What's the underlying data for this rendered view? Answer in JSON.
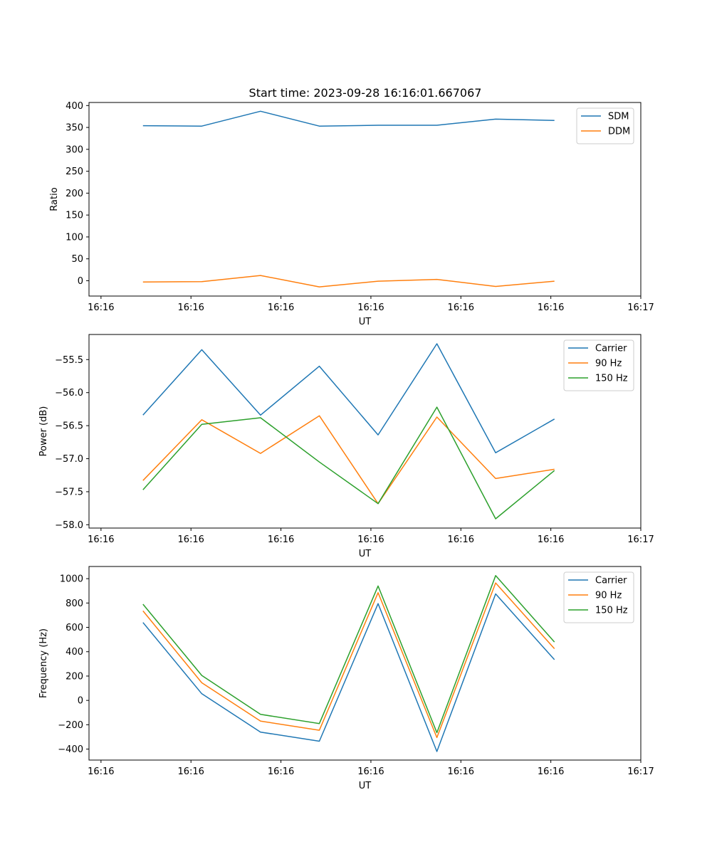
{
  "figure_title": "Start time: 2023-09-28 16:16:01.667067",
  "chart_data": [
    {
      "type": "line",
      "title": "Start time: 2023-09-28 16:16:01.667067",
      "xlabel": "UT",
      "ylabel": "Ratio",
      "xlim": [
        -0.6,
        8.6
      ],
      "ylim": [
        -35,
        407
      ],
      "x_ticks": [
        -0.4,
        1.1,
        2.6,
        4.1,
        5.6,
        7.1,
        8.6
      ],
      "x_tick_labels": [
        "16:16",
        "16:16",
        "16:16",
        "16:16",
        "16:16",
        "16:16",
        "16:17"
      ],
      "y_ticks": [
        0,
        50,
        100,
        150,
        200,
        250,
        300,
        350,
        400
      ],
      "y_tick_labels": [
        "0",
        "50",
        "100",
        "150",
        "200",
        "250",
        "300",
        "350",
        "400"
      ],
      "legend_position": "top-right",
      "x": [
        0.3,
        1.28,
        2.26,
        3.24,
        4.22,
        5.2,
        6.18,
        7.16
      ],
      "series": [
        {
          "name": "SDM",
          "color": "#1f77b4",
          "values": [
            354,
            353,
            387,
            353,
            355,
            355,
            369,
            366
          ]
        },
        {
          "name": "DDM",
          "color": "#ff7f0e",
          "values": [
            -3,
            -2,
            12,
            -14,
            -1,
            3,
            -13,
            -1
          ]
        }
      ]
    },
    {
      "type": "line",
      "title": "",
      "xlabel": "UT",
      "ylabel": "Power (dB)",
      "xlim": [
        -0.6,
        8.6
      ],
      "ylim": [
        -58.05,
        -55.12
      ],
      "x_ticks": [
        -0.4,
        1.1,
        2.6,
        4.1,
        5.6,
        7.1,
        8.6
      ],
      "x_tick_labels": [
        "16:16",
        "16:16",
        "16:16",
        "16:16",
        "16:16",
        "16:16",
        "16:17"
      ],
      "y_ticks": [
        -58.0,
        -57.5,
        -57.0,
        -56.5,
        -56.0,
        -55.5
      ],
      "y_tick_labels": [
        "−58.0",
        "−57.5",
        "−57.0",
        "−56.5",
        "−56.0",
        "−55.5"
      ],
      "legend_position": "top-right",
      "x": [
        0.3,
        1.28,
        2.26,
        3.24,
        4.22,
        5.2,
        6.18,
        7.16
      ],
      "series": [
        {
          "name": "Carrier",
          "color": "#1f77b4",
          "values": [
            -56.34,
            -55.35,
            -56.34,
            -55.6,
            -56.64,
            -55.26,
            -56.91,
            -56.4
          ]
        },
        {
          "name": "90 Hz",
          "color": "#ff7f0e",
          "values": [
            -57.33,
            -56.41,
            -56.92,
            -56.35,
            -57.68,
            -56.37,
            -57.3,
            -57.16
          ]
        },
        {
          "name": "150 Hz",
          "color": "#2ca02c",
          "values": [
            -57.47,
            -56.48,
            -56.38,
            -57.05,
            -57.68,
            -56.22,
            -57.91,
            -57.18
          ]
        }
      ]
    },
    {
      "type": "line",
      "title": "",
      "xlabel": "UT",
      "ylabel": "Frequency (Hz)",
      "xlim": [
        -0.6,
        8.6
      ],
      "ylim": [
        -490,
        1100
      ],
      "x_ticks": [
        -0.4,
        1.1,
        2.6,
        4.1,
        5.6,
        7.1,
        8.6
      ],
      "x_tick_labels": [
        "16:16",
        "16:16",
        "16:16",
        "16:16",
        "16:16",
        "16:16",
        "16:17"
      ],
      "y_ticks": [
        -400,
        -200,
        0,
        200,
        400,
        600,
        800,
        1000
      ],
      "y_tick_labels": [
        "−400",
        "−200",
        "0",
        "200",
        "400",
        "600",
        "800",
        "1000"
      ],
      "legend_position": "top-right",
      "x": [
        0.3,
        1.28,
        2.26,
        3.24,
        4.22,
        5.2,
        6.18,
        7.16
      ],
      "series": [
        {
          "name": "Carrier",
          "color": "#1f77b4",
          "values": [
            640,
            55,
            -260,
            -335,
            795,
            -420,
            875,
            335
          ]
        },
        {
          "name": "90 Hz",
          "color": "#ff7f0e",
          "values": [
            735,
            145,
            -170,
            -245,
            885,
            -305,
            965,
            425
          ]
        },
        {
          "name": "150 Hz",
          "color": "#2ca02c",
          "values": [
            790,
            205,
            -115,
            -190,
            940,
            -265,
            1025,
            480
          ]
        }
      ]
    }
  ]
}
